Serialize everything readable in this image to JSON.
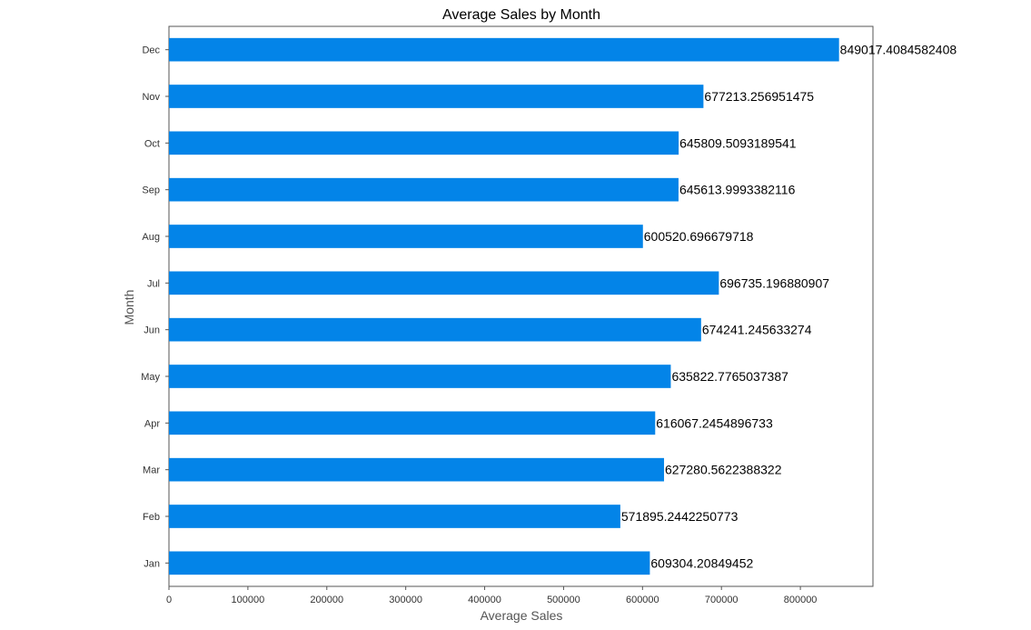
{
  "chart_data": {
    "type": "bar",
    "orientation": "horizontal",
    "title": "Average Sales by Month",
    "xlabel": "Average Sales",
    "ylabel": "Month",
    "categories": [
      "Jan",
      "Feb",
      "Mar",
      "Apr",
      "May",
      "Jun",
      "Jul",
      "Aug",
      "Sep",
      "Oct",
      "Nov",
      "Dec"
    ],
    "values": [
      609304.20849452,
      571895.2442250773,
      627280.5622388322,
      616067.2454896733,
      635822.7765037387,
      674241.245633274,
      696735.196880907,
      600520.696679718,
      645613.9993382116,
      645809.5093189541,
      677213.256951475,
      849017.4084582408
    ],
    "data_labels": [
      "609304.20849452",
      "571895.2442250773",
      "627280.5622388322",
      "616067.2454896733",
      "635822.7765037387",
      "674241.245633274",
      "696735.196880907",
      "600520.696679718",
      "645613.9993382116",
      "645809.5093189541",
      "677213.256951475",
      "849017.4084582408"
    ],
    "xticks": [
      0,
      100000,
      200000,
      300000,
      400000,
      500000,
      600000,
      700000,
      800000
    ],
    "xtick_labels": [
      "0",
      "100000",
      "200000",
      "300000",
      "400000",
      "500000",
      "600000",
      "700000",
      "800000"
    ],
    "xlim": [
      0,
      891968
    ],
    "grid": false,
    "legend": "none",
    "bar_color": "#0384e8",
    "axes_color": "#555555"
  }
}
